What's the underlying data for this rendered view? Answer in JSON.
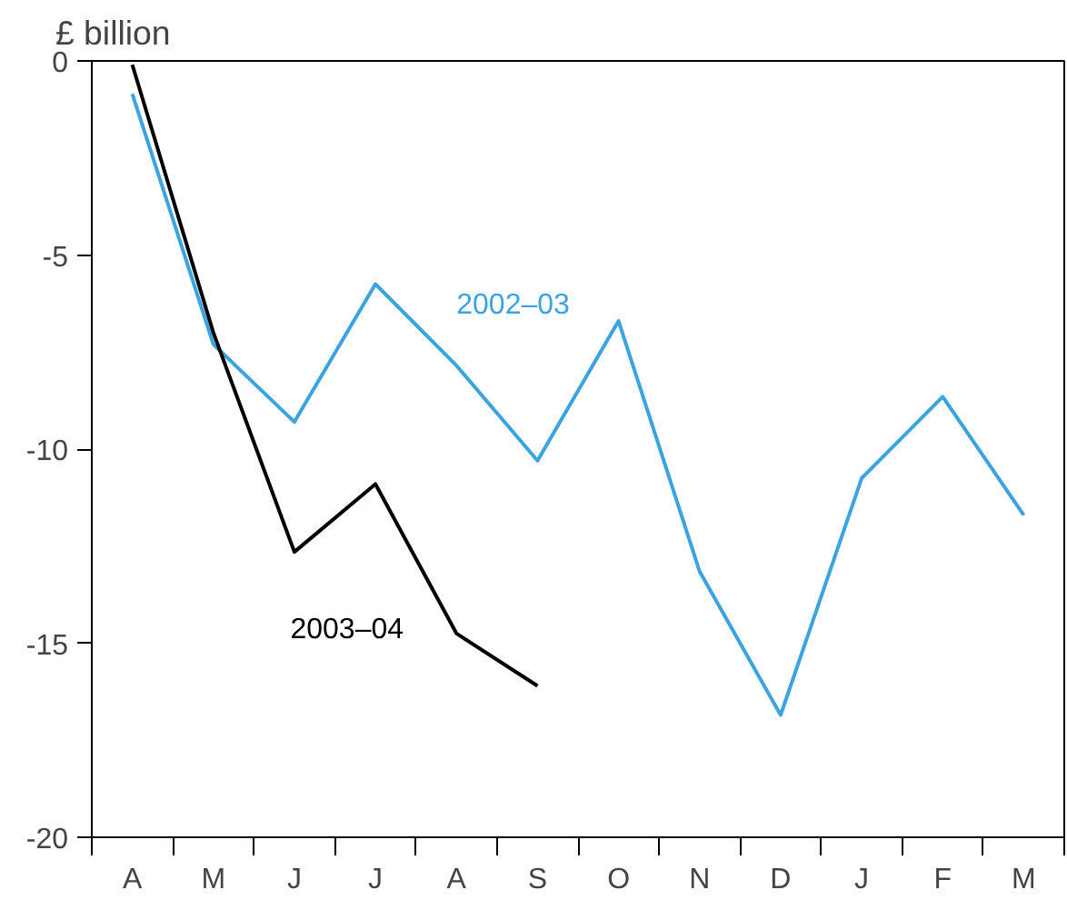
{
  "chart_data": {
    "type": "line",
    "ylabel": "£ billion",
    "categories": [
      "A",
      "M",
      "J",
      "J",
      "A",
      "S",
      "O",
      "N",
      "D",
      "J",
      "F",
      "M"
    ],
    "series": [
      {
        "name": "2002–03",
        "color": "#3ba3e0",
        "values": [
          -0.85,
          -7.3,
          -9.3,
          -5.75,
          -7.85,
          -10.3,
          -6.7,
          -13.15,
          -16.85,
          -10.75,
          -8.65,
          -11.7
        ]
      },
      {
        "name": "2003–04",
        "color": "#000000",
        "values": [
          -0.1,
          -7.0,
          -12.65,
          -10.9,
          -14.75,
          -16.1,
          null,
          null,
          null,
          null,
          null,
          null
        ]
      }
    ],
    "ylim": [
      -20,
      0
    ],
    "yticks": [
      0,
      -5,
      -10,
      -15,
      -20
    ],
    "grid": false,
    "marker": "none",
    "line_style": "solid"
  }
}
